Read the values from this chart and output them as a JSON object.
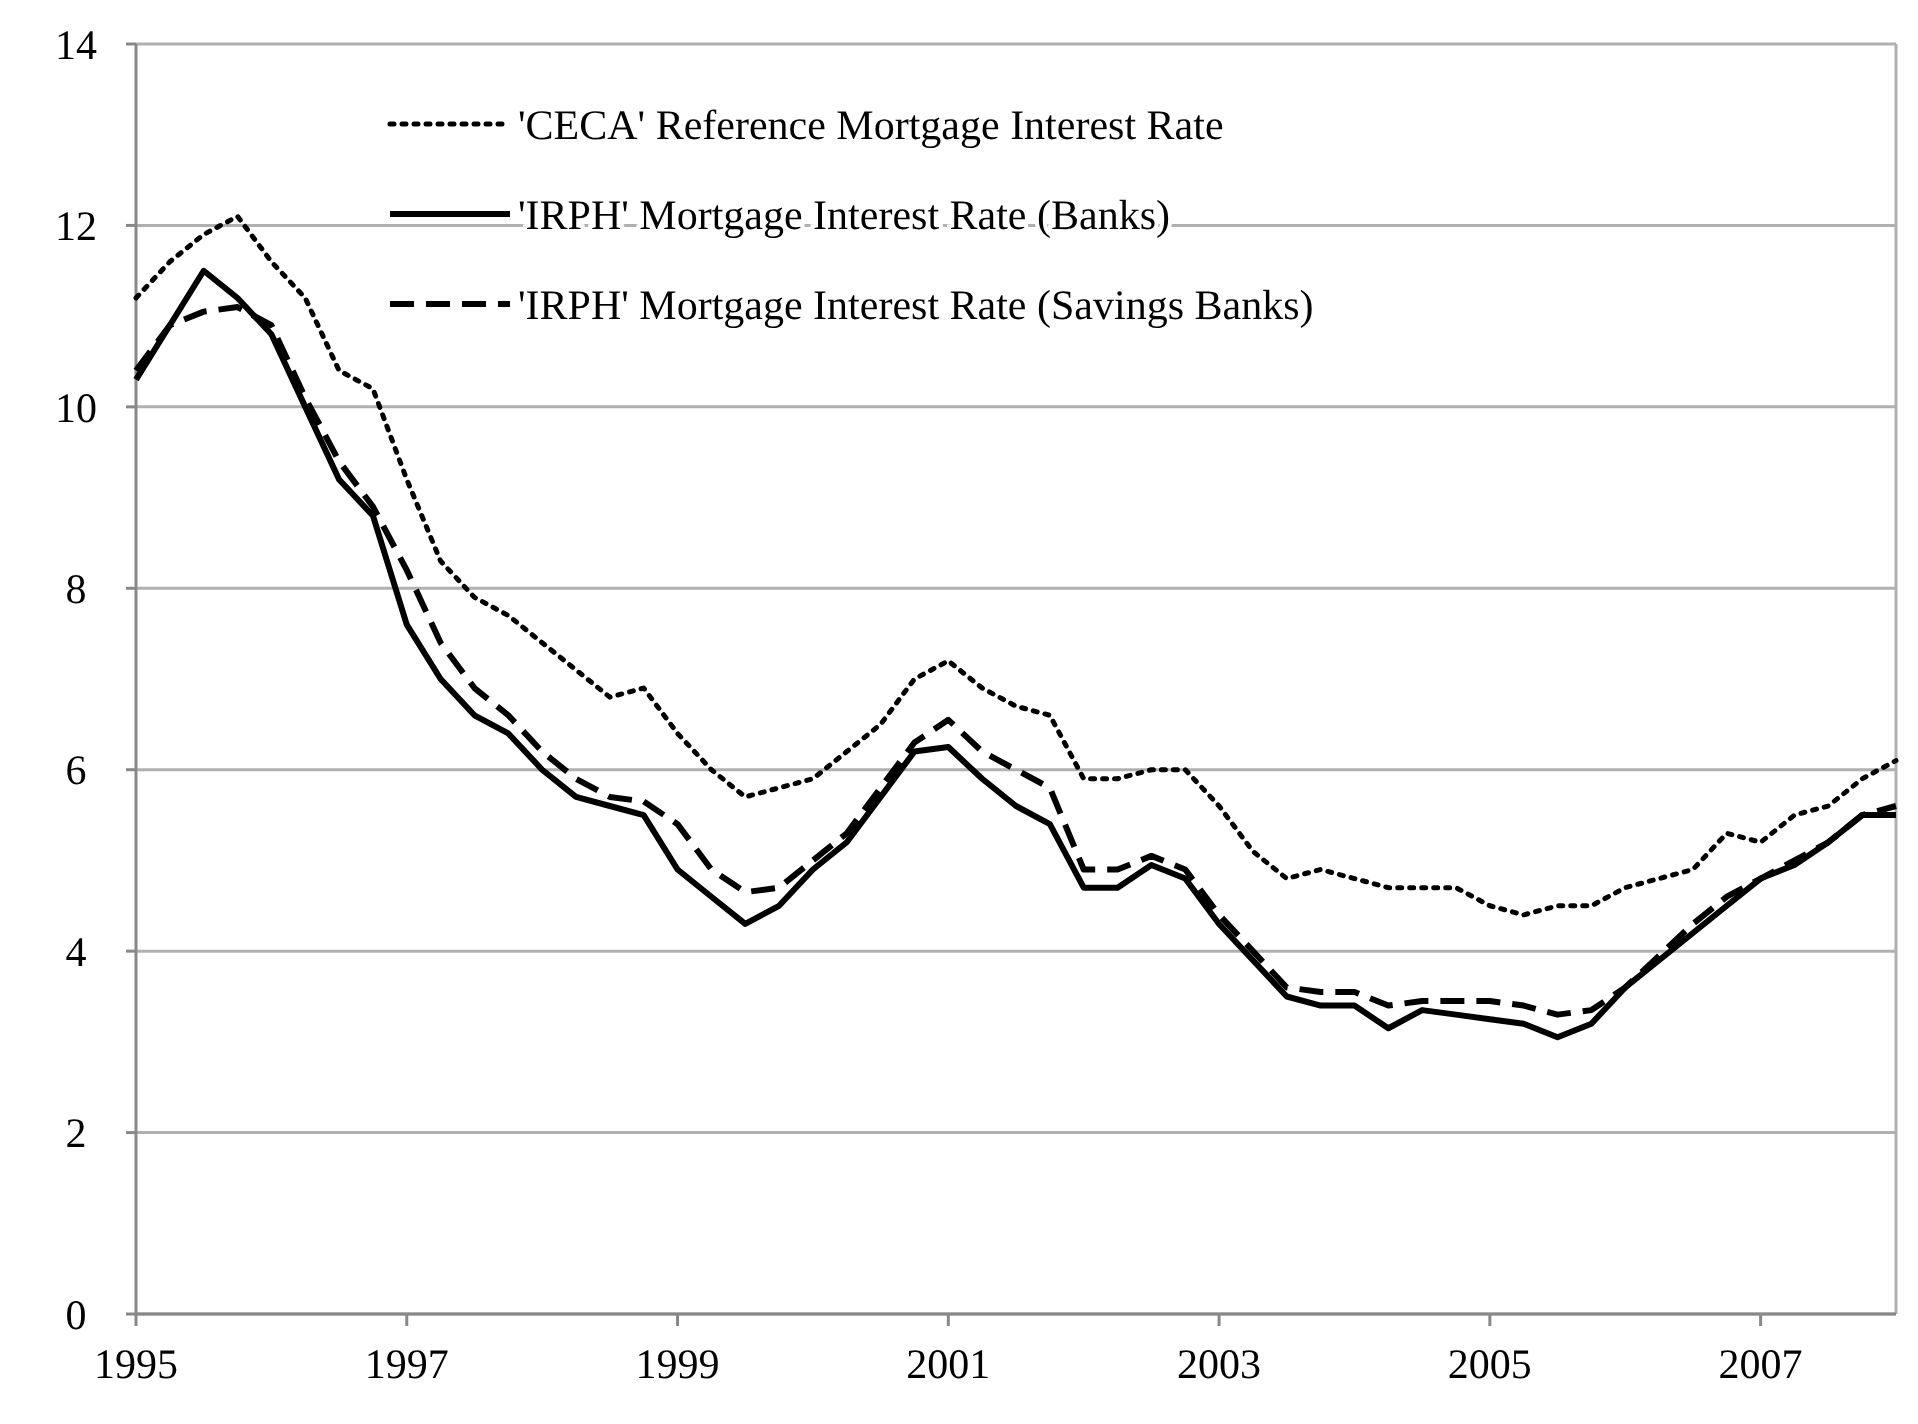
{
  "chart_data": {
    "type": "line",
    "x": [
      1995,
      1995.25,
      1995.5,
      1995.75,
      1996,
      1996.25,
      1996.5,
      1996.75,
      1997,
      1997.25,
      1997.5,
      1997.75,
      1998,
      1998.25,
      1998.5,
      1998.75,
      1999,
      1999.25,
      1999.5,
      1999.75,
      2000,
      2000.25,
      2000.5,
      2000.75,
      2001,
      2001.25,
      2001.5,
      2001.75,
      2002,
      2002.25,
      2002.5,
      2002.75,
      2003,
      2003.25,
      2003.5,
      2003.75,
      2004,
      2004.25,
      2004.5,
      2004.75,
      2005,
      2005.25,
      2005.5,
      2005.75,
      2006,
      2006.25,
      2006.5,
      2006.75,
      2007,
      2007.25,
      2007.5,
      2007.75,
      2008
    ],
    "series": [
      {
        "name": "'CECA' Reference Mortgage Interest Rate",
        "color": "#000000",
        "line_style": "dotted",
        "values": [
          11.2,
          11.6,
          11.9,
          12.1,
          11.6,
          11.2,
          10.4,
          10.2,
          9.2,
          8.3,
          7.9,
          7.7,
          7.4,
          7.1,
          6.8,
          6.9,
          6.4,
          6.0,
          5.7,
          5.8,
          5.9,
          6.2,
          6.5,
          7.0,
          7.2,
          6.9,
          6.7,
          6.6,
          5.9,
          5.9,
          6.0,
          6.0,
          5.6,
          5.1,
          4.8,
          4.9,
          4.8,
          4.7,
          4.7,
          4.7,
          4.5,
          4.4,
          4.5,
          4.5,
          4.7,
          4.8,
          4.9,
          5.3,
          5.2,
          5.5,
          5.6,
          5.9,
          6.1
        ]
      },
      {
        "name": "'IRPH' Mortgage Interest Rate (Banks)",
        "color": "#000000",
        "line_style": "solid",
        "values": [
          10.3,
          10.9,
          11.5,
          11.2,
          10.8,
          10.0,
          9.2,
          8.8,
          7.6,
          7.0,
          6.6,
          6.4,
          6.0,
          5.7,
          5.6,
          5.5,
          4.9,
          4.6,
          4.3,
          4.5,
          4.9,
          5.2,
          5.7,
          6.2,
          6.25,
          5.9,
          5.6,
          5.4,
          4.7,
          4.7,
          4.95,
          4.8,
          4.3,
          3.9,
          3.5,
          3.4,
          3.4,
          3.15,
          3.35,
          3.3,
          3.25,
          3.2,
          3.05,
          3.2,
          3.6,
          3.9,
          4.2,
          4.5,
          4.8,
          4.95,
          5.2,
          5.5,
          5.5
        ]
      },
      {
        "name": "'IRPH' Mortgage Interest Rate (Savings Banks)",
        "color": "#000000",
        "line_style": "dashed",
        "values": [
          10.4,
          10.9,
          11.05,
          11.1,
          10.9,
          10.1,
          9.4,
          8.9,
          8.2,
          7.4,
          6.9,
          6.6,
          6.2,
          5.9,
          5.7,
          5.65,
          5.4,
          4.9,
          4.65,
          4.7,
          5.0,
          5.3,
          5.8,
          6.3,
          6.55,
          6.2,
          6.0,
          5.8,
          4.9,
          4.9,
          5.05,
          4.9,
          4.4,
          4.0,
          3.6,
          3.55,
          3.55,
          3.4,
          3.45,
          3.45,
          3.45,
          3.4,
          3.3,
          3.35,
          3.6,
          3.95,
          4.3,
          4.6,
          4.8,
          5.0,
          5.2,
          5.5,
          5.6
        ]
      }
    ],
    "xlim": [
      1995,
      2008
    ],
    "xticks": [
      1995,
      1997,
      1999,
      2001,
      2003,
      2005,
      2007
    ],
    "ylim": [
      0,
      14
    ],
    "yticks": [
      0,
      2,
      4,
      6,
      8,
      10,
      12,
      14
    ],
    "grid": "y",
    "legend": "top"
  }
}
